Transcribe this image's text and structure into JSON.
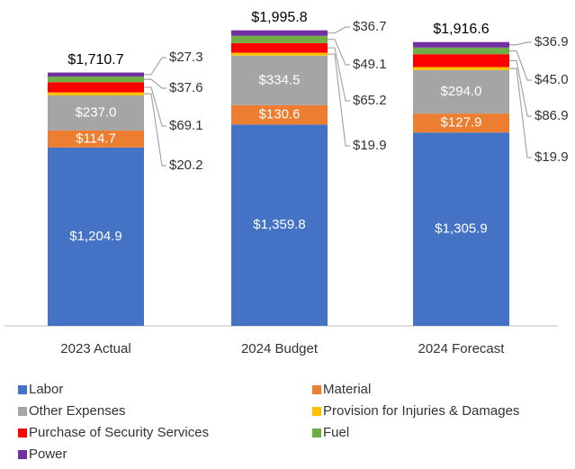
{
  "chart_data": {
    "type": "stacked_bar",
    "categories": [
      "2023 Actual",
      "2024 Budget",
      "2024 Forecast"
    ],
    "ylim": [
      0,
      2000
    ],
    "series": [
      {
        "name": "Labor",
        "color": "#4472c4",
        "values": [
          1204.9,
          1359.8,
          1305.9
        ],
        "value_labels": [
          "$1,204.9",
          "$1,359.8",
          "$1,305.9"
        ]
      },
      {
        "name": "Material",
        "color": "#ed7d31",
        "values": [
          114.7,
          130.6,
          127.9
        ],
        "value_labels": [
          "$114.7",
          "$130.6",
          "$127.9"
        ]
      },
      {
        "name": "Other Expenses",
        "color": "#a5a5a5",
        "values": [
          237.0,
          334.5,
          294.0
        ],
        "value_labels": [
          "$237.0",
          "$334.5",
          "$294.0"
        ]
      },
      {
        "name": "Provision for Injuries & Damages",
        "color": "#ffc000",
        "values": [
          20.2,
          19.9,
          19.9
        ],
        "value_labels": [
          "$20.2",
          "$19.9",
          "$19.9"
        ]
      },
      {
        "name": "Purchase of Security Services",
        "color": "#ff0000",
        "values": [
          69.1,
          65.2,
          86.9
        ],
        "value_labels": [
          "$69.1",
          "$65.2",
          "$86.9"
        ]
      },
      {
        "name": "Fuel",
        "color": "#70ad47",
        "values": [
          37.6,
          49.1,
          45.0
        ],
        "value_labels": [
          "$37.6",
          "$49.1",
          "$45.0"
        ]
      },
      {
        "name": "Power",
        "color": "#7030a0",
        "values": [
          27.3,
          36.7,
          36.9
        ],
        "value_labels": [
          "$27.3",
          "$36.7",
          "$36.9"
        ]
      }
    ],
    "totals": [
      1710.7,
      1995.8,
      1916.6
    ],
    "total_labels": [
      "$1,710.7",
      "$1,995.8",
      "$1,916.6"
    ]
  }
}
